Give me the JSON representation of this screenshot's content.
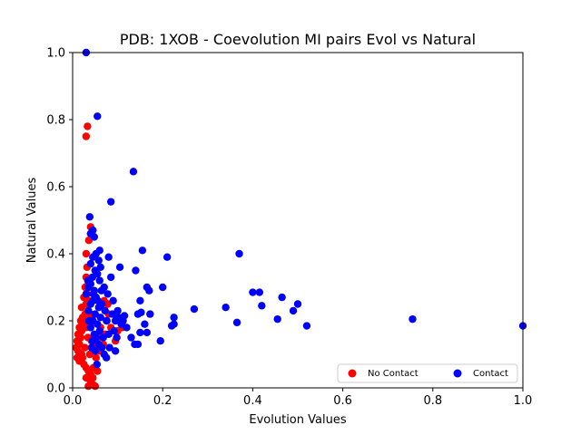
{
  "chart_data": {
    "type": "scatter",
    "title": "PDB: 1XOB - Coevolution MI pairs Evol vs Natural",
    "xlabel": "Evolution Values",
    "ylabel": "Natural Values",
    "xlim": [
      0.0,
      1.0
    ],
    "ylim": [
      0.0,
      1.0
    ],
    "xticks": [
      "0.0",
      "0.2",
      "0.4",
      "0.6",
      "0.8",
      "1.0"
    ],
    "yticks": [
      "0.0",
      "0.2",
      "0.4",
      "0.6",
      "0.8",
      "1.0"
    ],
    "grid": false,
    "legend_position": "bottom-right",
    "series": [
      {
        "name": "No Contact",
        "color": "#ff0000",
        "points": [
          [
            0.033,
            0.78
          ],
          [
            0.03,
            0.75
          ],
          [
            0.04,
            0.48
          ],
          [
            0.04,
            0.46
          ],
          [
            0.036,
            0.44
          ],
          [
            0.03,
            0.4
          ],
          [
            0.032,
            0.36
          ],
          [
            0.03,
            0.33
          ],
          [
            0.035,
            0.31
          ],
          [
            0.028,
            0.3
          ],
          [
            0.032,
            0.28
          ],
          [
            0.025,
            0.27
          ],
          [
            0.03,
            0.25
          ],
          [
            0.02,
            0.24
          ],
          [
            0.028,
            0.22
          ],
          [
            0.022,
            0.21
          ],
          [
            0.018,
            0.2
          ],
          [
            0.025,
            0.19
          ],
          [
            0.015,
            0.18
          ],
          [
            0.02,
            0.17
          ],
          [
            0.012,
            0.16
          ],
          [
            0.018,
            0.15
          ],
          [
            0.01,
            0.14
          ],
          [
            0.015,
            0.13
          ],
          [
            0.008,
            0.12
          ],
          [
            0.012,
            0.11
          ],
          [
            0.02,
            0.1
          ],
          [
            0.01,
            0.09
          ],
          [
            0.015,
            0.08
          ],
          [
            0.025,
            0.07
          ],
          [
            0.03,
            0.06
          ],
          [
            0.035,
            0.05
          ],
          [
            0.04,
            0.04
          ],
          [
            0.03,
            0.03
          ],
          [
            0.04,
            0.02
          ],
          [
            0.045,
            0.01
          ],
          [
            0.035,
            0.005
          ],
          [
            0.05,
            0.005
          ],
          [
            0.045,
            0.03
          ],
          [
            0.055,
            0.05
          ],
          [
            0.038,
            0.1
          ],
          [
            0.042,
            0.14
          ],
          [
            0.048,
            0.12
          ],
          [
            0.058,
            0.15
          ],
          [
            0.062,
            0.18
          ],
          [
            0.068,
            0.13
          ],
          [
            0.072,
            0.16
          ],
          [
            0.075,
            0.2
          ],
          [
            0.08,
            0.22
          ],
          [
            0.085,
            0.18
          ],
          [
            0.07,
            0.26
          ],
          [
            0.078,
            0.25
          ],
          [
            0.052,
            0.09
          ],
          [
            0.046,
            0.06
          ],
          [
            0.034,
            0.15
          ],
          [
            0.027,
            0.12
          ],
          [
            0.022,
            0.09
          ],
          [
            0.03,
            0.18
          ],
          [
            0.04,
            0.22
          ],
          [
            0.035,
            0.26
          ],
          [
            0.1,
            0.17
          ],
          [
            0.11,
            0.18
          ],
          [
            0.095,
            0.14
          ],
          [
            0.06,
            0.11
          ]
        ]
      },
      {
        "name": "Contact",
        "color": "#0000ff",
        "points": [
          [
            0.03,
            1.0
          ],
          [
            0.055,
            0.81
          ],
          [
            0.135,
            0.645
          ],
          [
            0.085,
            0.555
          ],
          [
            0.038,
            0.51
          ],
          [
            0.045,
            0.47
          ],
          [
            0.04,
            0.46
          ],
          [
            0.048,
            0.45
          ],
          [
            0.06,
            0.41
          ],
          [
            0.052,
            0.4
          ],
          [
            0.045,
            0.39
          ],
          [
            0.058,
            0.38
          ],
          [
            0.04,
            0.37
          ],
          [
            0.062,
            0.36
          ],
          [
            0.05,
            0.35
          ],
          [
            0.055,
            0.34
          ],
          [
            0.044,
            0.33
          ],
          [
            0.06,
            0.32
          ],
          [
            0.04,
            0.31
          ],
          [
            0.035,
            0.3
          ],
          [
            0.048,
            0.29
          ],
          [
            0.03,
            0.28
          ],
          [
            0.052,
            0.27
          ],
          [
            0.045,
            0.26
          ],
          [
            0.04,
            0.25
          ],
          [
            0.058,
            0.24
          ],
          [
            0.035,
            0.23
          ],
          [
            0.05,
            0.22
          ],
          [
            0.062,
            0.21
          ],
          [
            0.045,
            0.2
          ],
          [
            0.055,
            0.19
          ],
          [
            0.04,
            0.18
          ],
          [
            0.06,
            0.17
          ],
          [
            0.048,
            0.16
          ],
          [
            0.052,
            0.15
          ],
          [
            0.044,
            0.14
          ],
          [
            0.058,
            0.13
          ],
          [
            0.065,
            0.12
          ],
          [
            0.05,
            0.11
          ],
          [
            0.07,
            0.1
          ],
          [
            0.075,
            0.09
          ],
          [
            0.08,
            0.39
          ],
          [
            0.085,
            0.33
          ],
          [
            0.09,
            0.26
          ],
          [
            0.07,
            0.3
          ],
          [
            0.078,
            0.28
          ],
          [
            0.088,
            0.22
          ],
          [
            0.095,
            0.2
          ],
          [
            0.1,
            0.23
          ],
          [
            0.108,
            0.19
          ],
          [
            0.112,
            0.2
          ],
          [
            0.12,
            0.18
          ],
          [
            0.105,
            0.36
          ],
          [
            0.14,
            0.35
          ],
          [
            0.155,
            0.41
          ],
          [
            0.165,
            0.3
          ],
          [
            0.17,
            0.29
          ],
          [
            0.21,
            0.39
          ],
          [
            0.2,
            0.3
          ],
          [
            0.15,
            0.26
          ],
          [
            0.145,
            0.22
          ],
          [
            0.152,
            0.225
          ],
          [
            0.172,
            0.22
          ],
          [
            0.16,
            0.19
          ],
          [
            0.165,
            0.165
          ],
          [
            0.13,
            0.15
          ],
          [
            0.138,
            0.13
          ],
          [
            0.145,
            0.13
          ],
          [
            0.15,
            0.165
          ],
          [
            0.095,
            0.11
          ],
          [
            0.115,
            0.215
          ],
          [
            0.195,
            0.14
          ],
          [
            0.22,
            0.185
          ],
          [
            0.225,
            0.21
          ],
          [
            0.225,
            0.19
          ],
          [
            0.27,
            0.235
          ],
          [
            0.34,
            0.24
          ],
          [
            0.365,
            0.195
          ],
          [
            0.37,
            0.4
          ],
          [
            0.4,
            0.285
          ],
          [
            0.415,
            0.285
          ],
          [
            0.42,
            0.245
          ],
          [
            0.455,
            0.205
          ],
          [
            0.465,
            0.27
          ],
          [
            0.49,
            0.23
          ],
          [
            0.5,
            0.25
          ],
          [
            0.52,
            0.185
          ],
          [
            0.755,
            0.205
          ],
          [
            1.0,
            0.185
          ],
          [
            0.065,
            0.25
          ],
          [
            0.068,
            0.15
          ],
          [
            0.072,
            0.23
          ],
          [
            0.08,
            0.16
          ],
          [
            0.036,
            0.2
          ],
          [
            0.042,
            0.12
          ],
          [
            0.054,
            0.07
          ],
          [
            0.046,
            0.28
          ],
          [
            0.064,
            0.29
          ],
          [
            0.056,
            0.26
          ],
          [
            0.034,
            0.32
          ],
          [
            0.076,
            0.2
          ],
          [
            0.082,
            0.12
          ],
          [
            0.092,
            0.17
          ],
          [
            0.098,
            0.15
          ],
          [
            0.102,
            0.21
          ]
        ]
      }
    ]
  }
}
